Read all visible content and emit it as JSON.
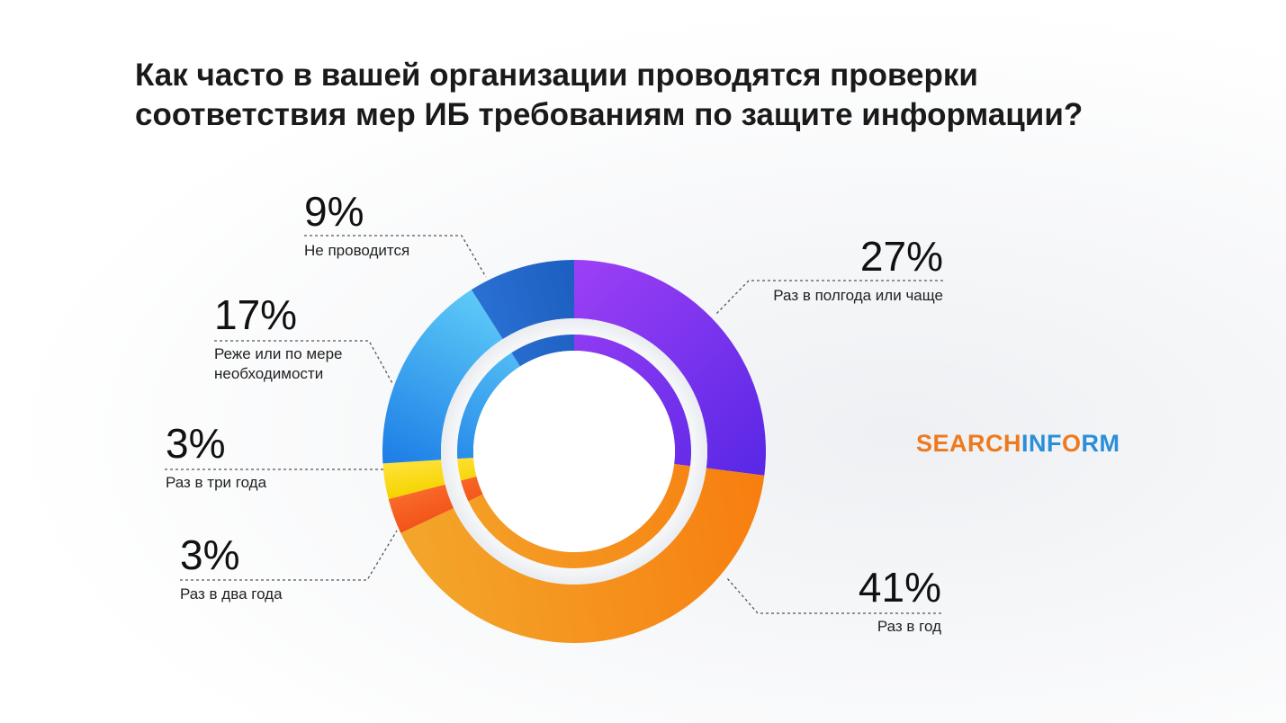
{
  "title": {
    "line1": "Как часто в вашей организации проводятся проверки",
    "line2": "соответствия мер ИБ требованиям по защите информации?"
  },
  "logo": {
    "part1": "SEARCH",
    "part2": "INF",
    "part3": "O",
    "part4": "RM"
  },
  "chart_data": {
    "type": "pie",
    "variant": "donut",
    "title": "Как часто в вашей организации проводятся проверки соответствия мер ИБ требованиям по защите информации?",
    "unit": "%",
    "slices": [
      {
        "label": "Раз в полгода или чаще",
        "value": 27,
        "display": "27%",
        "color_start": "#9b3ff5",
        "color_end": "#5a28e6"
      },
      {
        "label": "Раз в год",
        "value": 41,
        "display": "41%",
        "color_start": "#f77f10",
        "color_end": "#f3a52a"
      },
      {
        "label": "Раз в два года",
        "value": 3,
        "display": "3%",
        "color_start": "#f2541a",
        "color_end": "#f96a2a"
      },
      {
        "label": "Раз в три года",
        "value": 3,
        "display": "3%",
        "color_start": "#f5d400",
        "color_end": "#ffe23a"
      },
      {
        "label": "Реже или по мере необходимости",
        "label_lines": [
          "Реже или по мере",
          "необходимости"
        ],
        "value": 17,
        "display": "17%",
        "color_start": "#1e7fe6",
        "color_end": "#5bc8f7"
      },
      {
        "label": "Не проводится",
        "value": 9,
        "display": "9%",
        "color_start": "#2a6fd2",
        "color_end": "#1c5fc0"
      }
    ]
  }
}
